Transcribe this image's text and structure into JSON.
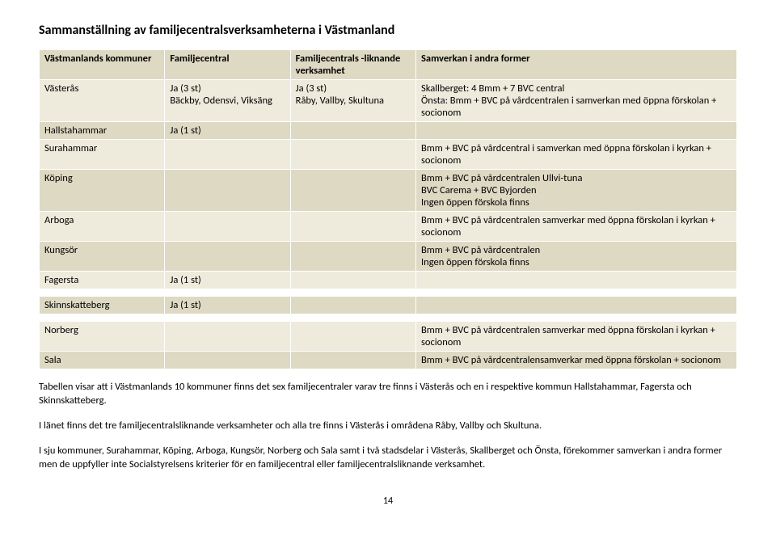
{
  "title": "Sammanställning av familjecentralsverksamheterna i Västmanland",
  "colors": {
    "headerBg": "#ded9c3",
    "oddBg": "#eeebdc",
    "evenBg": "#ded9c3"
  },
  "headers": {
    "col1": "Västmanlands kommuner",
    "col2": "Familjecentral",
    "col3": "Familjecentrals -liknande verksamhet",
    "col4": "Samverkan i andra former"
  },
  "rowsA": [
    {
      "c1": "Västerås",
      "c2": "Ja (3 st)\nBäckby, Odensvi, Viksäng",
      "c3": "Ja (3 st)\nRåby, Vallby, Skultuna",
      "c4": "Skallberget: 4 Bmm + 7 BVC central\nÖnsta: Bmm + BVC på vårdcentralen i samverkan med öppna förskolan + socionom"
    },
    {
      "c1": "Hallstahammar",
      "c2": "Ja (1 st)",
      "c3": "",
      "c4": ""
    },
    {
      "c1": "Surahammar",
      "c2": "",
      "c3": "",
      "c4": "Bmm + BVC på vårdcentral i samverkan med öppna förskolan i kyrkan + socionom"
    },
    {
      "c1": "Köping",
      "c2": "",
      "c3": "",
      "c4": "Bmm + BVC på vårdcentralen Ullvi-tuna\nBVC Carema + BVC Byjorden\nIngen öppen förskola finns"
    },
    {
      "c1": "Arboga",
      "c2": "",
      "c3": "",
      "c4": "Bmm + BVC på vårdcentralen samverkar med öppna förskolan i kyrkan + socionom"
    },
    {
      "c1": "Kungsör",
      "c2": "",
      "c3": "",
      "c4": "Bmm + BVC på vårdcentralen\nIngen öppen förskola finns"
    },
    {
      "c1": "Fagersta",
      "c2": "Ja (1 st)",
      "c3": "",
      "c4": ""
    }
  ],
  "rowsB": [
    {
      "c1": "Skinnskatteberg",
      "c2": "Ja (1 st)",
      "c3": "",
      "c4": ""
    }
  ],
  "rowsC": [
    {
      "c1": "Norberg",
      "c2": "",
      "c3": "",
      "c4": "Bmm + BVC på vårdcentralen samverkar med öppna förskolan i kyrkan + socionom"
    },
    {
      "c1": "Sala",
      "c2": "",
      "c3": "",
      "c4": "Bmm + BVC på vårdcentralensamverkar med öppna förskolan + socionom"
    }
  ],
  "para1": "Tabellen visar att i Västmanlands 10 kommuner finns det sex familjecentraler varav tre finns i Västerås och en i respektive kommun Hallstahammar, Fagersta och Skinnskatteberg.",
  "para2": "I länet finns det tre familjecentralsliknande verksamheter och alla tre finns i Västerås i områdena Råby, Vallby och Skultuna.",
  "para3": "I sju kommuner, Surahammar, Köping, Arboga, Kungsör, Norberg och Sala samt i två stadsdelar i Västerås, Skallberget och Önsta, förekommer samverkan i andra former men de uppfyller inte Socialstyrelsens kriterier för en familjecentral eller familjecentralsliknande verksamhet.",
  "pageNumber": "14"
}
